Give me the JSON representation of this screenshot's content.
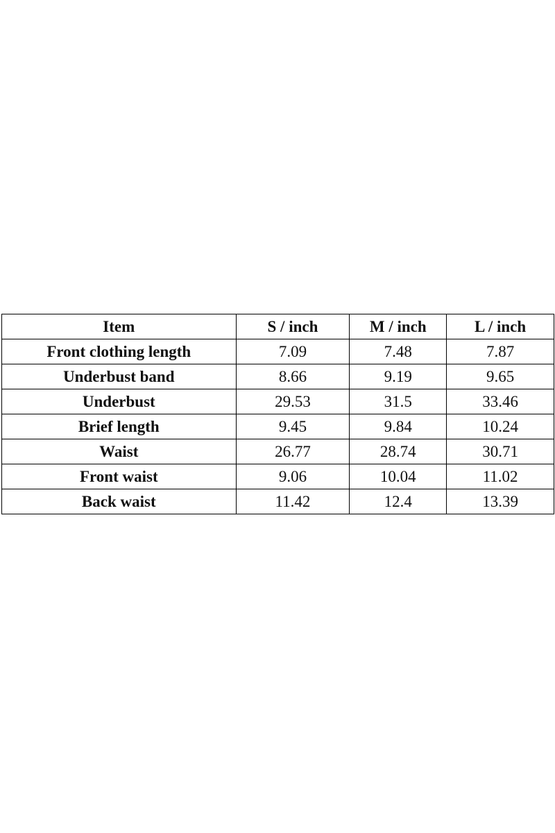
{
  "table": {
    "header": [
      "Item",
      "S / inch",
      "M / inch",
      "L / inch"
    ],
    "rows": [
      [
        "Front clothing length",
        "7.09",
        "7.48",
        "7.87"
      ],
      [
        "Underbust band",
        "8.66",
        "9.19",
        "9.65"
      ],
      [
        "Underbust",
        "29.53",
        "31.5",
        "33.46"
      ],
      [
        "Brief length",
        "9.45",
        "9.84",
        "10.24"
      ],
      [
        "Waist",
        "26.77",
        "28.74",
        "30.71"
      ],
      [
        "Front waist",
        "9.06",
        "10.04",
        "11.02"
      ],
      [
        "Back waist",
        "11.42",
        "12.4",
        "13.39"
      ]
    ]
  }
}
